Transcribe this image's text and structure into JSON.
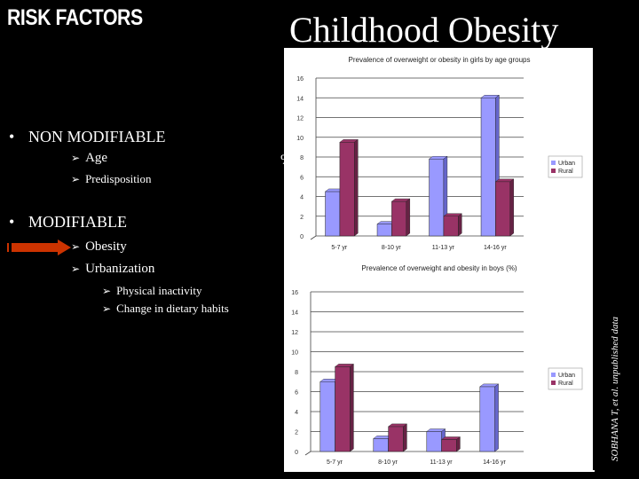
{
  "left": {
    "heading": "RISK FACTORS",
    "non_modifiable": {
      "label": "NON MODIFIABLE",
      "items": [
        "Age",
        "Predisposition"
      ]
    },
    "modifiable": {
      "label": "MODIFIABLE",
      "items": [
        "Obesity",
        "Urbanization"
      ],
      "subitems": [
        "Physical inactivity",
        "Change in dietary habits"
      ]
    }
  },
  "slide_title": "Childhood Obesity",
  "percent_label": "%",
  "credit": "SOBHANA T, et al. unpublished data",
  "colors": {
    "urban": "#9999ff",
    "rural": "#993366",
    "accent_arrow": "#cc3300"
  },
  "chart_data": [
    {
      "type": "bar",
      "title": "Prevalence of overweight or obesity in girls by age groups",
      "categories": [
        "5-7 yr",
        "8-10 yr",
        "11-13 yr",
        "14-16 yr"
      ],
      "yticks": [
        "0",
        "2",
        "4",
        "6",
        "8",
        "10",
        "12",
        "14",
        "16"
      ],
      "ylim": [
        0,
        16
      ],
      "series": [
        {
          "name": "Urban",
          "values": [
            4.5,
            1.2,
            7.8,
            14
          ]
        },
        {
          "name": "Rural",
          "values": [
            9.5,
            3.5,
            2,
            5.5
          ]
        }
      ],
      "legend": "right"
    },
    {
      "type": "bar",
      "title": "Prevalence of overweight and obesity in boys (%)",
      "categories": [
        "5-7 yr",
        "8-10 yr",
        "11-13 yr",
        "14-16 yr"
      ],
      "yticks": [
        "0",
        "2",
        "4",
        "6",
        "8",
        "10",
        "12",
        "14",
        "16"
      ],
      "ylim": [
        0,
        16
      ],
      "series": [
        {
          "name": "Urban",
          "values": [
            7,
            1.3,
            2,
            6.5
          ]
        },
        {
          "name": "Rural",
          "values": [
            8.5,
            2.5,
            1.2,
            0
          ]
        }
      ],
      "legend": "right"
    }
  ]
}
